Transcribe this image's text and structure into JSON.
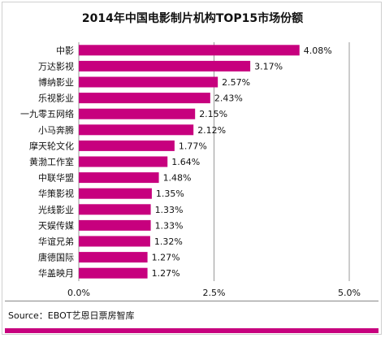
{
  "chart_data": {
    "type": "bar",
    "orientation": "horizontal",
    "title": "2014年中国电影制片机构TOP15市场份额",
    "categories": [
      "中影",
      "万达影视",
      "博纳影业",
      "乐视影业",
      "一九零五网络",
      "小马奔腾",
      "摩天轮文化",
      "黄渤工作室",
      "中联华盟",
      "华策影视",
      "光线影业",
      "天娱传媒",
      "华谊兄弟",
      "唐德国际",
      "华盖映月"
    ],
    "values": [
      4.08,
      3.17,
      2.57,
      2.43,
      2.15,
      2.12,
      1.77,
      1.64,
      1.48,
      1.35,
      1.33,
      1.33,
      1.32,
      1.27,
      1.27
    ],
    "value_labels": [
      "4.08%",
      "3.17%",
      "2.57%",
      "2.43%",
      "2.15%",
      "2.12%",
      "1.77%",
      "1.64%",
      "1.48%",
      "1.35%",
      "1.33%",
      "1.33%",
      "1.32%",
      "1.27%",
      "1.27%"
    ],
    "xlim": [
      0,
      5
    ],
    "xticks": [
      0,
      2.5,
      5
    ],
    "xtick_labels": [
      "0.0%",
      "2.5%",
      "5.0%"
    ],
    "grid": "vertical lines at ticks",
    "bar_color": "#c7007e"
  },
  "source": "Source：EBOT艺恩日票房智库",
  "colors": {
    "accent": "#c7007e"
  }
}
